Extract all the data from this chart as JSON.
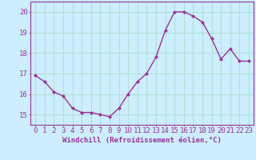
{
  "x": [
    0,
    1,
    2,
    3,
    4,
    5,
    6,
    7,
    8,
    9,
    10,
    11,
    12,
    13,
    14,
    15,
    16,
    17,
    18,
    19,
    20,
    21,
    22,
    23
  ],
  "y": [
    16.9,
    16.6,
    16.1,
    15.9,
    15.3,
    15.1,
    15.1,
    15.0,
    14.9,
    15.3,
    16.0,
    16.6,
    17.0,
    17.8,
    19.1,
    20.0,
    20.0,
    19.8,
    19.5,
    18.7,
    17.7,
    18.2,
    17.6,
    17.6
  ],
  "line_color": "#993399",
  "marker": "D",
  "marker_size": 2,
  "bg_color": "#cceeff",
  "grid_color": "#aaddcc",
  "xlabel": "Windchill (Refroidissement éolien,°C)",
  "ylabel_ticks": [
    15,
    16,
    17,
    18,
    19,
    20
  ],
  "xtick_labels": [
    "0",
    "1",
    "2",
    "3",
    "4",
    "5",
    "6",
    "7",
    "8",
    "9",
    "10",
    "11",
    "12",
    "13",
    "14",
    "15",
    "16",
    "17",
    "18",
    "19",
    "20",
    "21",
    "22",
    "23"
  ],
  "ylim": [
    14.5,
    20.5
  ],
  "xlim": [
    -0.5,
    23.5
  ],
  "line_color_str": "#993399",
  "line_width": 1.0,
  "tick_fontsize": 6.5,
  "xlabel_fontsize": 6.5
}
